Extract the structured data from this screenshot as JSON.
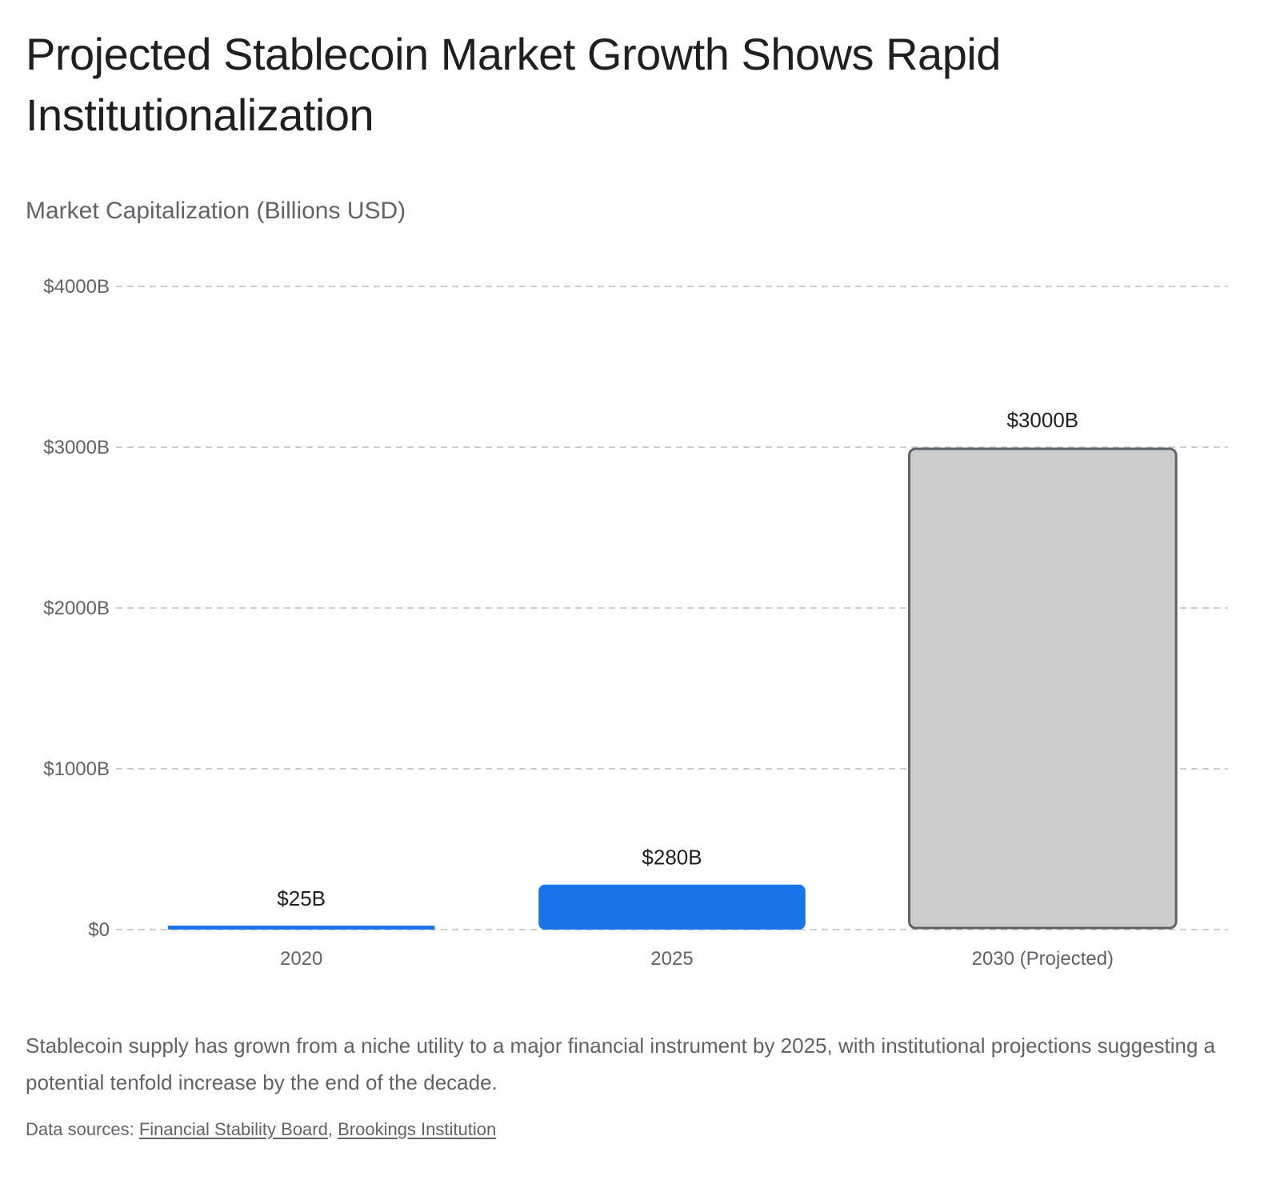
{
  "header": {
    "title": "Projected Stablecoin Market Growth Shows Rapid Institutionalization",
    "subtitle": "Market Capitalization (Billions USD)"
  },
  "chart_data": {
    "type": "bar",
    "categories": [
      "2020",
      "2025",
      "2030 (Projected)"
    ],
    "values": [
      25,
      280,
      3000
    ],
    "data_labels": [
      "$25B",
      "$280B",
      "$3000B"
    ],
    "ylabel": "Market Capitalization (Billions USD)",
    "ylim": [
      0,
      4000
    ],
    "yticks": [
      0,
      1000,
      2000,
      3000,
      4000
    ],
    "ytick_labels": [
      "$0",
      "$1000B",
      "$2000B",
      "$3000B",
      "$4000B"
    ],
    "grid": true,
    "legend": "none",
    "colors": {
      "actual": "#1a73e8",
      "projected_fill": "#cccccc",
      "projected_stroke": "#5f6368",
      "grid": "#bdbdbd"
    },
    "projected": [
      false,
      false,
      true
    ]
  },
  "footer": {
    "caption": "Stablecoin supply has grown from a niche utility to a major financial instrument by 2025, with institutional projections suggesting a potential tenfold increase by the end of the decade.",
    "sources_prefix": "Data sources: ",
    "sources": [
      {
        "label": "Financial Stability Board"
      },
      {
        "label": "Brookings Institution"
      }
    ],
    "separator": ", "
  }
}
